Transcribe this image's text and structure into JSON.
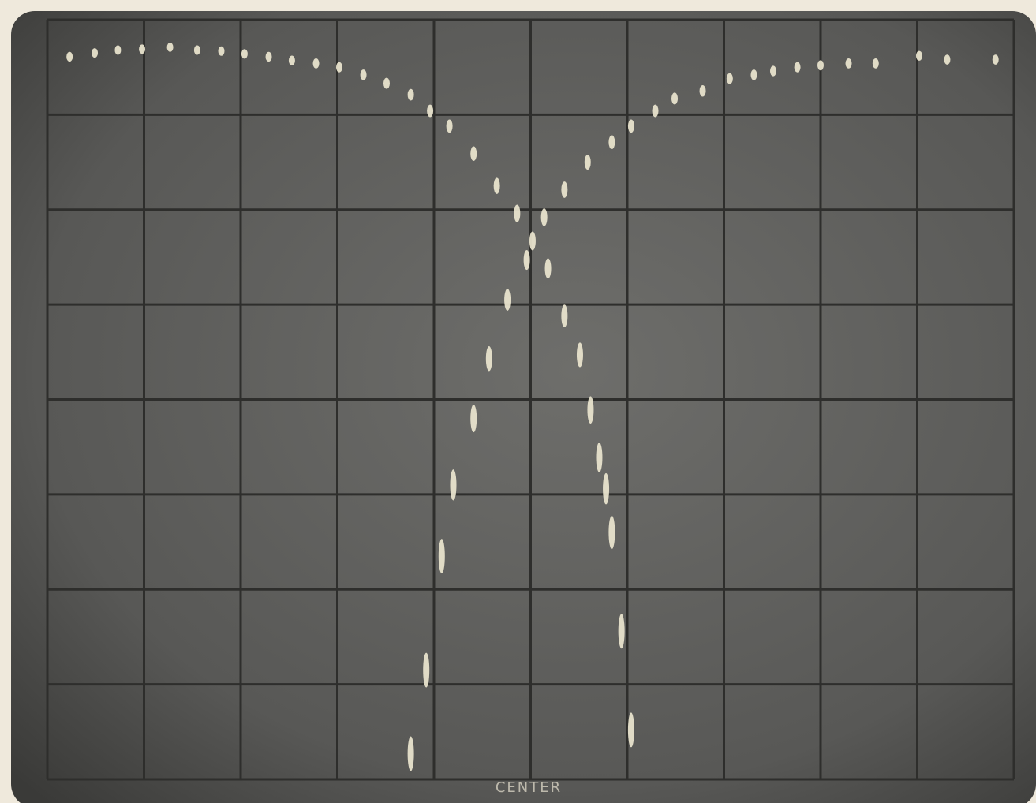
{
  "chart_data": {
    "type": "scatter",
    "annotation": "CENTER",
    "xlim": [
      0,
      10
    ],
    "ylim": [
      0,
      8
    ],
    "series": [
      {
        "color": "#ece6cf",
        "x": [
          0.23,
          0.49,
          0.73,
          0.98,
          1.27,
          1.55,
          1.8,
          2.04,
          2.29,
          2.53,
          2.78,
          3.02,
          3.27,
          3.51,
          3.76,
          3.96,
          4.16,
          4.41,
          4.65,
          4.86,
          5.02,
          5.18,
          5.35,
          5.51,
          5.62,
          5.71,
          5.78,
          5.84,
          5.94,
          6.04
        ],
        "values": [
          7.61,
          7.65,
          7.68,
          7.69,
          7.71,
          7.68,
          7.67,
          7.64,
          7.61,
          7.57,
          7.54,
          7.5,
          7.42,
          7.33,
          7.21,
          7.04,
          6.88,
          6.59,
          6.25,
          5.96,
          5.67,
          5.38,
          4.88,
          4.47,
          3.89,
          3.39,
          3.06,
          2.6,
          1.56,
          0.52
        ]
      },
      {
        "color": "#ece6cf",
        "x": [
          3.76,
          3.92,
          4.08,
          4.2,
          4.41,
          4.57,
          4.76,
          4.96,
          5.14,
          5.35,
          5.59,
          5.84,
          6.04,
          6.29,
          6.49,
          6.78,
          7.06,
          7.31,
          7.51,
          7.76,
          8.0,
          8.29,
          8.57,
          9.02,
          9.31,
          9.81
        ],
        "values": [
          0.27,
          1.15,
          2.35,
          3.1,
          3.8,
          4.43,
          5.05,
          5.47,
          5.92,
          6.21,
          6.5,
          6.71,
          6.88,
          7.04,
          7.17,
          7.25,
          7.38,
          7.42,
          7.46,
          7.5,
          7.52,
          7.54,
          7.54,
          7.62,
          7.58,
          7.58
        ]
      }
    ]
  }
}
